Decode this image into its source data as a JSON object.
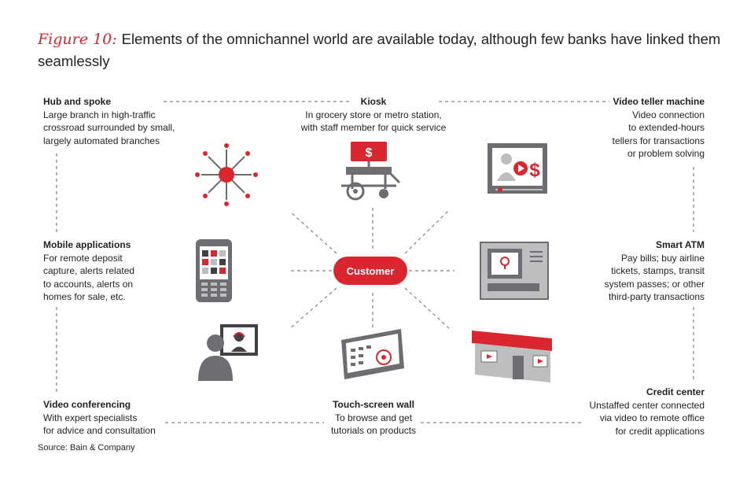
{
  "title": {
    "figure_label": "Figure 10:",
    "text": "Elements of the omnichannel world are available today, although few banks have linked them seamlessly"
  },
  "center": {
    "label": "Customer"
  },
  "elements": {
    "hub": {
      "heading": "Hub and spoke",
      "description": "Large branch in high-traffic\ncrossroad surrounded by small,\nlargely automated branches"
    },
    "kiosk": {
      "heading": "Kiosk",
      "description": "In grocery store or metro station,\nwith staff member for quick service"
    },
    "vtm": {
      "heading": "Video teller machine",
      "description": "Video connection\nto extended-hours\ntellers for transactions\nor problem solving"
    },
    "mobile": {
      "heading": "Mobile applications",
      "description": "For remote deposit\ncapture, alerts related\nto accounts, alerts on\nhomes for sale, etc."
    },
    "smart_atm": {
      "heading": "Smart ATM",
      "description": "Pay bills; buy airline\ntickets, stamps, transit\nsystem passes; or other\nthird-party transactions"
    },
    "video_conf": {
      "heading": "Video conferencing",
      "description": "With expert specialists\nfor advice and consultation"
    },
    "touch_wall": {
      "heading": "Touch-screen wall",
      "description": "To browse and get\ntutorials on products"
    },
    "credit": {
      "heading": "Credit center",
      "description": "Unstaffed center connected\nvia video to remote office\nfor credit applications"
    }
  },
  "kiosk_sign": "$",
  "vtm_sign": "$",
  "source": "Source: Bain & Company",
  "colors": {
    "accent": "#d9262f",
    "gray": "#6d6e71",
    "dark": "#414042",
    "dash": "#808285"
  }
}
